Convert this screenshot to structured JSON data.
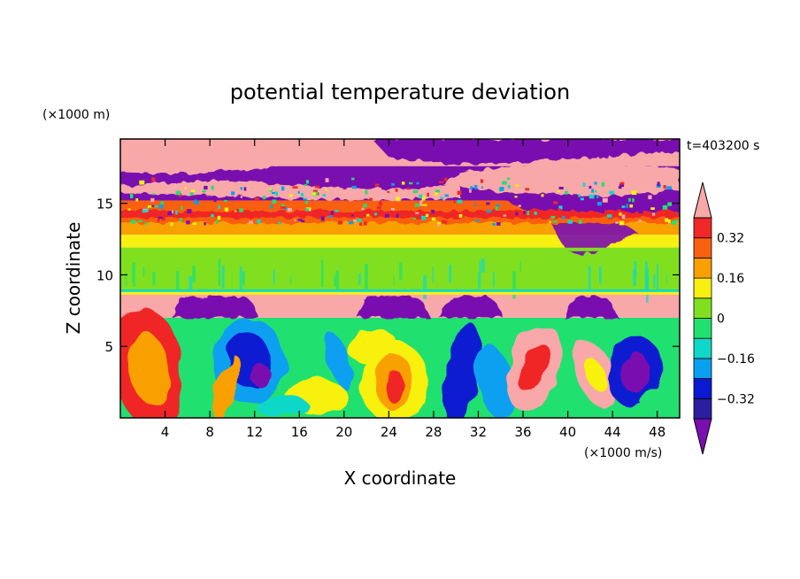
{
  "chart_data": {
    "type": "heatmap",
    "title": "potential temperature deviation",
    "xlabel": "X coordinate",
    "ylabel": "Z coordinate",
    "x_units": "(×1000 m/s)",
    "y_units": "(×1000 m)",
    "time_label": "t=403200 s",
    "xlim": [
      0,
      50
    ],
    "ylim": [
      0,
      19.5
    ],
    "x_ticks": [
      4,
      8,
      12,
      16,
      20,
      24,
      28,
      32,
      36,
      40,
      44,
      48
    ],
    "y_ticks": [
      5,
      10,
      15
    ],
    "colorbar": {
      "levels": [
        -0.4,
        -0.32,
        -0.24,
        -0.16,
        -0.08,
        0,
        0.08,
        0.16,
        0.24,
        0.32,
        0.4
      ],
      "labels": [
        "-0.32",
        "-0.16",
        "0",
        "0.16",
        "0.32"
      ],
      "label_values": [
        -0.32,
        -0.16,
        0,
        0.16,
        0.32
      ],
      "colors": [
        "#7a0fb0",
        "#2a1fa0",
        "#0a1ad0",
        "#0aa0f0",
        "#10d8c8",
        "#20e070",
        "#80e020",
        "#f8f010",
        "#f8a000",
        "#f86010",
        "#f02828",
        "#f8a8a8"
      ]
    },
    "layers": [
      {
        "z": [
          17.6,
          19.5
        ],
        "dominant": "#f8a8a8",
        "mixed": "#7a0fb0"
      },
      {
        "z": [
          15.2,
          17.6
        ],
        "dominant": "#7a0fb0",
        "mixed": "#f8a8a8"
      },
      {
        "z": [
          14.2,
          15.2
        ],
        "dominant": "#f86010"
      },
      {
        "z": [
          12.8,
          14.2
        ],
        "dominant": "#f8a000"
      },
      {
        "z": [
          11.9,
          12.8
        ],
        "dominant": "#f8f010"
      },
      {
        "z": [
          8.8,
          11.9
        ],
        "dominant": "#80e020"
      },
      {
        "z": [
          7.0,
          8.7
        ],
        "dominant": "#f8a8a8"
      },
      {
        "z": [
          0,
          7.0
        ],
        "dominant": "#20e070",
        "mixed": "eddies"
      }
    ]
  }
}
